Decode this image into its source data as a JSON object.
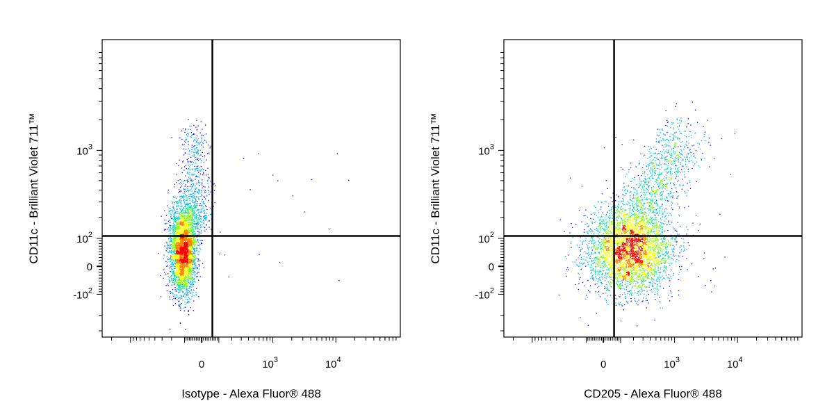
{
  "chart_data": [
    {
      "type": "scatter",
      "xlabel": "Isotype - Alexa Fluor® 488",
      "ylabel": "CD11c - Brilliant Violet 711™",
      "x_scale": "biexponential",
      "y_scale": "biexponential",
      "x_ticks": [
        {
          "value": 0,
          "base": "0",
          "exp": ""
        },
        {
          "value": 1000,
          "base": "10",
          "exp": "3"
        },
        {
          "value": 10000,
          "base": "10",
          "exp": "4"
        }
      ],
      "y_ticks": [
        {
          "value": 1000,
          "base": "10",
          "exp": "3"
        },
        {
          "value": 100,
          "base": "10",
          "exp": "2"
        },
        {
          "value": 0,
          "base": "0",
          "exp": ""
        },
        {
          "value": -100,
          "base": "-10",
          "exp": "2"
        }
      ],
      "quadrant_gate": {
        "x": 60,
        "y": 110
      },
      "population": {
        "main_cluster_center": {
          "x": 0,
          "y": 0
        },
        "upper_tail_max_y": 800,
        "quadrant_fraction": {
          "upper_left": 0.06,
          "upper_right": 0.002,
          "lower_left": 0.93,
          "lower_right": 0.008
        }
      },
      "density_colors": [
        "#0000ff",
        "#00aaff",
        "#00e0a0",
        "#7fff00",
        "#ffff00",
        "#ff8000",
        "#ff0000"
      ]
    },
    {
      "type": "scatter",
      "xlabel": "CD205 - Alexa Fluor® 488",
      "ylabel": "CD11c - Brilliant Violet 711™",
      "x_scale": "biexponential",
      "y_scale": "biexponential",
      "x_ticks": [
        {
          "value": 0,
          "base": "0",
          "exp": ""
        },
        {
          "value": 1000,
          "base": "10",
          "exp": "3"
        },
        {
          "value": 10000,
          "base": "10",
          "exp": "4"
        }
      ],
      "y_ticks": [
        {
          "value": 1000,
          "base": "10",
          "exp": "3"
        },
        {
          "value": 100,
          "base": "10",
          "exp": "2"
        },
        {
          "value": 0,
          "base": "0",
          "exp": ""
        },
        {
          "value": -100,
          "base": "-10",
          "exp": "2"
        }
      ],
      "quadrant_gate": {
        "x": 60,
        "y": 110
      },
      "population": {
        "main_cluster_center": {
          "x": 200,
          "y": 5
        },
        "upper_tail_max_y": 800,
        "quadrant_fraction": {
          "upper_left": 0.01,
          "upper_right": 0.18,
          "lower_left": 0.12,
          "lower_right": 0.69
        }
      },
      "density_colors": [
        "#0000ff",
        "#00aaff",
        "#00e0a0",
        "#7fff00",
        "#ffff00",
        "#ff8000",
        "#ff0000"
      ]
    }
  ]
}
